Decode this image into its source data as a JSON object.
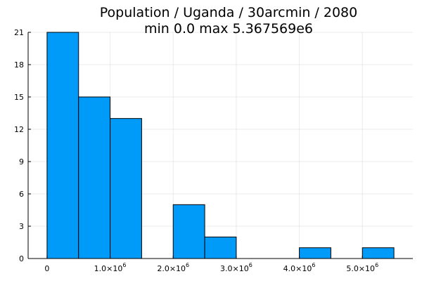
{
  "chart_data": {
    "type": "bar",
    "title": "Population / Uganda / 30arcmin / 2080",
    "subtitle": "min 0.0  max 5.367569e6",
    "xlabel": "",
    "ylabel": "",
    "bin_edges": [
      0,
      500000,
      1000000,
      1500000,
      2000000,
      2500000,
      3000000,
      3500000,
      4000000,
      4500000,
      5000000,
      5500000
    ],
    "values": [
      21,
      15,
      13,
      0,
      5,
      2,
      0,
      0,
      1,
      0,
      1
    ],
    "xlim": [
      -300000,
      5800000
    ],
    "ylim": [
      0,
      21
    ],
    "y_ticks": [
      0,
      3,
      6,
      9,
      12,
      15,
      18,
      21
    ],
    "x_ticks": [
      {
        "value": 0,
        "mantissa": "0",
        "exp": ""
      },
      {
        "value": 1000000,
        "mantissa": "1.0×10",
        "exp": "6"
      },
      {
        "value": 2000000,
        "mantissa": "2.0×10",
        "exp": "6"
      },
      {
        "value": 3000000,
        "mantissa": "3.0×10",
        "exp": "6"
      },
      {
        "value": 4000000,
        "mantissa": "4.0×10",
        "exp": "6"
      },
      {
        "value": 5000000,
        "mantissa": "5.0×10",
        "exp": "6"
      }
    ],
    "grid": true,
    "legend": "none",
    "bar_color": "#009af9"
  }
}
